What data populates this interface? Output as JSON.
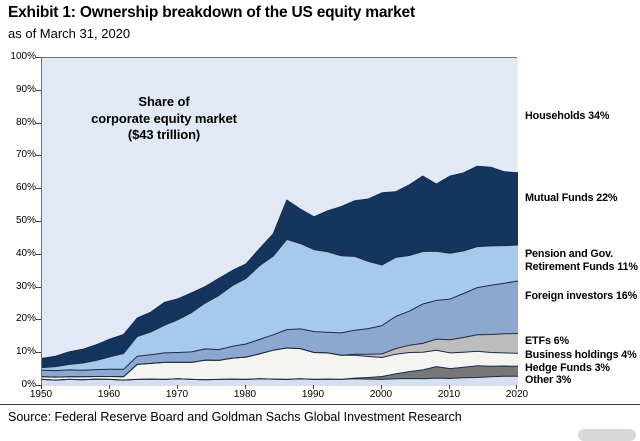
{
  "header": {
    "title": "Exhibit 1: Ownership breakdown of the US equity market",
    "subtitle": "as of March 31, 2020"
  },
  "annotation": "Share of\ncorporate equity market\n($43 trillion)",
  "legend": {
    "items": [
      {
        "label": "Households 34%"
      },
      {
        "label": "Mutual Funds 22%"
      },
      {
        "label": "Pension and Gov.\nRetirement Funds 11%"
      },
      {
        "label": "Foreign investors 16%"
      },
      {
        "label": "ETFs 6%"
      },
      {
        "label": "Business holdings 4%"
      },
      {
        "label": "Hedge Funds 3%"
      },
      {
        "label": "Other 3%"
      }
    ]
  },
  "source": "Source: Federal Reserve Board and Goldman Sachs Global Investment Research",
  "chart_data": {
    "type": "area",
    "stacked": true,
    "annotation": "Share of corporate equity market ($43 trillion)",
    "xlim": [
      1950,
      2020
    ],
    "ylim": [
      0,
      100
    ],
    "grid": false,
    "legend_position": "right",
    "x_ticks": [
      {
        "label": "1950",
        "value": 1950
      },
      {
        "label": "1960",
        "value": 1960
      },
      {
        "label": "1970",
        "value": 1970
      },
      {
        "label": "1980",
        "value": 1980
      },
      {
        "label": "1990",
        "value": 1990
      },
      {
        "label": "2000",
        "value": 2000
      },
      {
        "label": "2010",
        "value": 2010
      },
      {
        "label": "2020",
        "value": 2020
      }
    ],
    "y_ticks": [
      {
        "label": "0%",
        "value": 0
      },
      {
        "label": "10%",
        "value": 10
      },
      {
        "label": "20%",
        "value": 20
      },
      {
        "label": "30%",
        "value": 30
      },
      {
        "label": "40%",
        "value": 40
      },
      {
        "label": "50%",
        "value": 50
      },
      {
        "label": "60%",
        "value": 60
      },
      {
        "label": "70%",
        "value": 70
      },
      {
        "label": "80%",
        "value": 80
      },
      {
        "label": "90%",
        "value": 90
      },
      {
        "label": "100%",
        "value": 100
      }
    ],
    "stroke_color": "#1b2b47",
    "x": [
      1950,
      1952,
      1954,
      1956,
      1958,
      1960,
      1962,
      1964,
      1966,
      1968,
      1970,
      1972,
      1974,
      1976,
      1978,
      1980,
      1982,
      1984,
      1986,
      1988,
      1990,
      1992,
      1994,
      1996,
      1998,
      2000,
      2002,
      2004,
      2006,
      2008,
      2010,
      2012,
      2014,
      2016,
      2018,
      2020
    ],
    "series": [
      {
        "name": "other",
        "label": "Other",
        "share_2020": "3%",
        "color": "#d6dfee",
        "values": [
          2.0,
          1.8,
          2.0,
          1.9,
          2.1,
          2.0,
          1.8,
          2.0,
          2.1,
          2.0,
          2.2,
          2.0,
          1.9,
          2.0,
          2.1,
          2.0,
          2.2,
          2.1,
          2.0,
          2.2,
          2.0,
          2.1,
          2.0,
          2.2,
          2.1,
          2.0,
          2.2,
          2.3,
          2.2,
          2.4,
          2.3,
          2.5,
          2.6,
          2.8,
          3.0,
          3.0
        ]
      },
      {
        "name": "hedge_funds",
        "label": "Hedge Funds",
        "share_2020": "3%",
        "color": "#777777",
        "values": [
          0,
          0,
          0,
          0,
          0,
          0,
          0,
          0,
          0,
          0,
          0,
          0,
          0,
          0,
          0,
          0,
          0,
          0,
          0,
          0,
          0,
          0,
          0,
          0.2,
          0.5,
          0.9,
          1.5,
          2.1,
          2.7,
          3.5,
          3.0,
          3.2,
          3.6,
          3.2,
          3.1,
          3.0
        ]
      },
      {
        "name": "business_holdings",
        "label": "Business holdings",
        "share_2020": "4%",
        "color": "#f4f4f1",
        "values": [
          0.8,
          0.9,
          0.8,
          0.9,
          0.8,
          0.9,
          1.0,
          4.6,
          4.8,
          5.2,
          5.0,
          5.2,
          6.0,
          5.8,
          6.4,
          6.8,
          7.6,
          8.8,
          9.6,
          9.2,
          8.2,
          8.0,
          7.4,
          7.0,
          6.4,
          5.8,
          6.0,
          5.8,
          5.4,
          5.0,
          4.8,
          4.6,
          4.4,
          4.2,
          4.0,
          4.0
        ]
      },
      {
        "name": "etfs",
        "label": "ETFs",
        "share_2020": "6%",
        "color": "#bdbdbd",
        "values": [
          0,
          0,
          0,
          0,
          0,
          0,
          0,
          0,
          0,
          0,
          0,
          0,
          0,
          0,
          0,
          0,
          0,
          0,
          0,
          0,
          0,
          0,
          0,
          0.3,
          0.7,
          1.1,
          1.7,
          2.2,
          2.7,
          3.4,
          4.0,
          4.5,
          5.0,
          5.5,
          5.8,
          6.0
        ]
      },
      {
        "name": "foreign_investors",
        "label": "Foreign investors",
        "share_2020": "16%",
        "color": "#8ca7d0",
        "values": [
          2.0,
          2.0,
          2.1,
          2.0,
          2.1,
          2.2,
          2.3,
          2.5,
          2.6,
          2.9,
          3.0,
          3.2,
          3.4,
          3.3,
          3.6,
          4.0,
          4.4,
          4.7,
          5.6,
          6.0,
          6.4,
          6.3,
          6.8,
          7.3,
          7.8,
          8.6,
          9.8,
          10.4,
          12.0,
          11.8,
          12.4,
          13.4,
          14.4,
          15.0,
          15.4,
          16.0
        ]
      },
      {
        "name": "pension_gov_retirement",
        "label": "Pension and Gov. Retirement Funds",
        "share_2020": "11%",
        "color": "#a6cbea",
        "values": [
          0.8,
          1.2,
          1.7,
          2.2,
          2.8,
          3.8,
          4.8,
          6.0,
          7.0,
          8.4,
          10.0,
          12.0,
          14.0,
          16.5,
          18.5,
          20.0,
          22.5,
          24.0,
          27.5,
          26.0,
          25.0,
          24.5,
          23.5,
          22.5,
          20.5,
          18.5,
          18.0,
          17.0,
          16.0,
          15.0,
          14.0,
          13.0,
          12.5,
          12.0,
          11.5,
          11.0
        ]
      },
      {
        "name": "mutual_funds",
        "label": "Mutual Funds",
        "share_2020": "22%",
        "color": "#14355e",
        "values": [
          2.8,
          3.2,
          3.8,
          4.2,
          4.8,
          5.4,
          5.8,
          5.6,
          6.0,
          7.0,
          6.4,
          6.0,
          5.0,
          5.2,
          4.6,
          4.4,
          5.2,
          6.8,
          12.0,
          10.5,
          10.0,
          12.5,
          15.0,
          17.0,
          19.0,
          22.0,
          20.0,
          21.5,
          23.0,
          20.5,
          23.5,
          23.8,
          24.5,
          24.0,
          22.5,
          22.0
        ]
      },
      {
        "name": "households",
        "label": "Households",
        "share_2020": "34%",
        "color": "#e3e9f4",
        "remainder": true
      }
    ]
  }
}
